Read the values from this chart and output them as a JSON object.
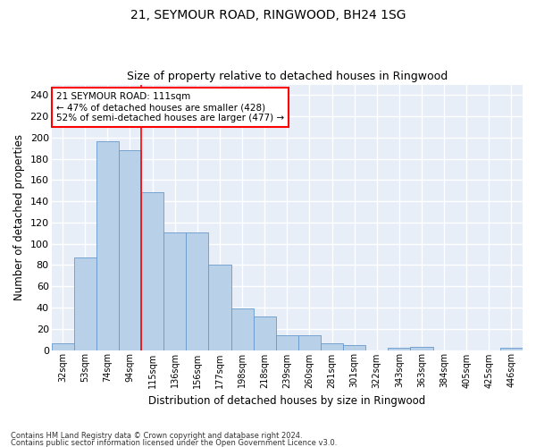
{
  "title1": "21, SEYMOUR ROAD, RINGWOOD, BH24 1SG",
  "title2": "Size of property relative to detached houses in Ringwood",
  "xlabel": "Distribution of detached houses by size in Ringwood",
  "ylabel": "Number of detached properties",
  "categories": [
    "32sqm",
    "53sqm",
    "74sqm",
    "94sqm",
    "115sqm",
    "136sqm",
    "156sqm",
    "177sqm",
    "198sqm",
    "218sqm",
    "239sqm",
    "260sqm",
    "281sqm",
    "301sqm",
    "322sqm",
    "343sqm",
    "363sqm",
    "384sqm",
    "405sqm",
    "425sqm",
    "446sqm"
  ],
  "values": [
    6,
    87,
    197,
    188,
    149,
    111,
    111,
    80,
    39,
    32,
    14,
    14,
    6,
    5,
    0,
    2,
    3,
    0,
    0,
    0,
    2
  ],
  "bar_color": "#b8d0e8",
  "bar_edge_color": "#6699cc",
  "highlight_line_index": 4,
  "highlight_line_color": "red",
  "annotation_text": "21 SEYMOUR ROAD: 111sqm\n← 47% of detached houses are smaller (428)\n52% of semi-detached houses are larger (477) →",
  "annotation_box_color": "white",
  "annotation_box_edge_color": "red",
  "ylim": [
    0,
    250
  ],
  "yticks": [
    0,
    20,
    40,
    60,
    80,
    100,
    120,
    140,
    160,
    180,
    200,
    220,
    240
  ],
  "background_color": "#e8eef8",
  "grid_color": "white",
  "footnote1": "Contains HM Land Registry data © Crown copyright and database right 2024.",
  "footnote2": "Contains public sector information licensed under the Open Government Licence v3.0."
}
